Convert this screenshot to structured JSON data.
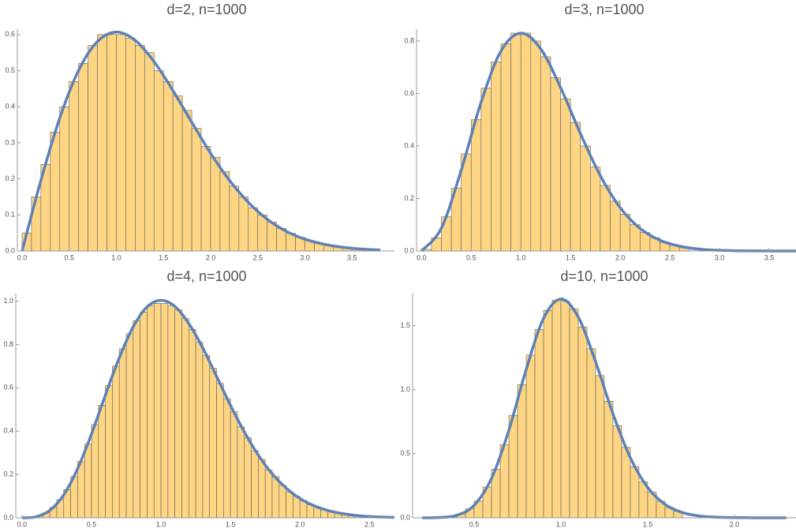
{
  "chart_data": [
    {
      "type": "histogram",
      "title": "d=2, n=1000",
      "color": "#fdd583",
      "edge_color": "#5f5f5f",
      "bins": [
        0,
        0.1,
        0.2,
        0.3,
        0.4,
        0.5,
        0.6,
        0.7,
        0.8,
        0.9,
        1.0,
        1.1,
        1.2,
        1.3,
        1.4,
        1.5,
        1.6,
        1.7,
        1.8,
        1.9,
        2.0,
        2.1,
        2.2,
        2.3,
        2.4,
        2.5,
        2.6,
        2.7,
        2.8,
        2.9,
        3.0,
        3.1,
        3.2,
        3.3,
        3.4,
        3.5,
        3.6
      ],
      "values": [
        0.05,
        0.15,
        0.24,
        0.33,
        0.4,
        0.47,
        0.52,
        0.57,
        0.6,
        0.6,
        0.6,
        0.59,
        0.57,
        0.55,
        0.5,
        0.47,
        0.43,
        0.39,
        0.34,
        0.29,
        0.26,
        0.22,
        0.18,
        0.15,
        0.12,
        0.1,
        0.08,
        0.063,
        0.049,
        0.038,
        0.029,
        0.022,
        0.017,
        0.012,
        0.009,
        0.006
      ],
      "curve": {
        "color": "#5e81b5",
        "x": [
          0,
          0.2,
          0.4,
          0.6,
          0.8,
          1.0,
          1.2,
          1.4,
          1.6,
          1.8,
          2.0,
          2.2,
          2.4,
          2.6,
          2.8,
          3.0,
          3.2,
          3.4,
          3.6,
          3.8
        ],
        "values": [
          0,
          0.196,
          0.369,
          0.501,
          0.581,
          0.607,
          0.584,
          0.525,
          0.445,
          0.357,
          0.271,
          0.196,
          0.135,
          0.088,
          0.055,
          0.033,
          0.019,
          0.0105,
          0.0055,
          0.0028
        ]
      },
      "xlim": [
        -0.05,
        3.95
      ],
      "ylim": [
        0,
        0.615
      ],
      "xticks": [
        {
          "value": 0,
          "label": "0.0"
        },
        0.5,
        {
          "value": 1,
          "label": "1.0"
        },
        1.5,
        {
          "value": 2,
          "label": "2.0"
        },
        2.5,
        {
          "value": 3,
          "label": "3.0"
        },
        3.5
      ],
      "yticks": [
        {
          "value": 0,
          "label": "0.0"
        },
        0.1,
        0.2,
        0.3,
        0.4,
        0.5,
        0.6
      ]
    },
    {
      "type": "histogram",
      "title": "d=3, n=1000",
      "color": "#fdd583",
      "edge_color": "#5f5f5f",
      "bins": [
        0,
        0.1,
        0.2,
        0.3,
        0.4,
        0.5,
        0.6,
        0.7,
        0.8,
        0.9,
        1.0,
        1.1,
        1.2,
        1.3,
        1.4,
        1.5,
        1.6,
        1.7,
        1.8,
        1.9,
        2.0,
        2.1,
        2.2,
        2.3,
        2.4,
        2.5,
        2.6,
        2.7
      ],
      "values": [
        0.006,
        0.05,
        0.13,
        0.24,
        0.37,
        0.5,
        0.62,
        0.72,
        0.79,
        0.83,
        0.83,
        0.8,
        0.74,
        0.66,
        0.58,
        0.49,
        0.4,
        0.32,
        0.25,
        0.19,
        0.14,
        0.1,
        0.07,
        0.05,
        0.033,
        0.022,
        0.014
      ],
      "curve": {
        "color": "#5e81b5",
        "x": [
          0,
          0.2,
          0.4,
          0.6,
          0.8,
          1.0,
          1.2,
          1.4,
          1.6,
          1.8,
          2.0,
          2.2,
          2.4,
          2.6,
          2.8,
          3.0,
          3.2,
          3.4,
          3.6,
          3.8
        ],
        "values": [
          0,
          0.087,
          0.308,
          0.567,
          0.762,
          0.83,
          0.77,
          0.623,
          0.447,
          0.287,
          0.165,
          0.086,
          0.041,
          0.018,
          0.007,
          0.0025,
          0.0008,
          0.0002,
          0.0001,
          0
        ]
      },
      "xlim": [
        -0.05,
        3.77
      ],
      "ylim": [
        0,
        0.845
      ],
      "xticks": [
        {
          "value": 0,
          "label": "0.0"
        },
        0.5,
        {
          "value": 1,
          "label": "1.0"
        },
        1.5,
        {
          "value": 2,
          "label": "2.0"
        },
        2.5,
        {
          "value": 3,
          "label": "3.0"
        },
        3.5
      ],
      "yticks": [
        {
          "value": 0,
          "label": "0.0"
        },
        0.2,
        0.4,
        0.6,
        0.8
      ]
    },
    {
      "type": "histogram",
      "title": "d=4, n=1000",
      "color": "#fdd583",
      "edge_color": "#5f5f5f",
      "bins": [
        0,
        0.05,
        0.1,
        0.15,
        0.2,
        0.25,
        0.3,
        0.35,
        0.4,
        0.45,
        0.5,
        0.55,
        0.6,
        0.65,
        0.7,
        0.75,
        0.8,
        0.85,
        0.9,
        0.95,
        1.0,
        1.05,
        1.1,
        1.15,
        1.2,
        1.25,
        1.3,
        1.35,
        1.4,
        1.45,
        1.5,
        1.55,
        1.6,
        1.65,
        1.7,
        1.75,
        1.8,
        1.85,
        1.9,
        1.95,
        2.0,
        2.05,
        2.1,
        2.15,
        2.2,
        2.25,
        2.3,
        2.35,
        2.4
      ],
      "values": [
        0,
        0.002,
        0.009,
        0.023,
        0.048,
        0.084,
        0.13,
        0.19,
        0.26,
        0.34,
        0.43,
        0.52,
        0.61,
        0.7,
        0.78,
        0.85,
        0.91,
        0.95,
        0.98,
        0.99,
        0.99,
        0.98,
        0.96,
        0.92,
        0.87,
        0.81,
        0.75,
        0.69,
        0.62,
        0.55,
        0.49,
        0.42,
        0.37,
        0.31,
        0.27,
        0.22,
        0.19,
        0.15,
        0.12,
        0.1,
        0.08,
        0.06,
        0.05,
        0.037,
        0.029,
        0.022,
        0.016,
        0.012
      ],
      "curve": {
        "color": "#5e81b5",
        "x": [
          0,
          0.1,
          0.2,
          0.3,
          0.4,
          0.5,
          0.6,
          0.7,
          0.8,
          0.9,
          1.0,
          1.1,
          1.2,
          1.3,
          1.4,
          1.5,
          1.6,
          1.7,
          1.8,
          1.9,
          2.0,
          2.1,
          2.2,
          2.3,
          2.4,
          2.5,
          2.6,
          2.7
        ],
        "values": [
          0,
          0.0044,
          0.034,
          0.106,
          0.227,
          0.387,
          0.567,
          0.739,
          0.882,
          0.974,
          1.004,
          0.976,
          0.897,
          0.785,
          0.653,
          0.519,
          0.396,
          0.29,
          0.203,
          0.138,
          0.089,
          0.056,
          0.034,
          0.02,
          0.011,
          0.006,
          0.003,
          0.0015
        ]
      },
      "xlim": [
        -0.045,
        2.68
      ],
      "ylim": [
        0,
        1.035
      ],
      "xticks": [
        {
          "value": 0,
          "label": "0.0"
        },
        0.5,
        {
          "value": 1,
          "label": "1.0"
        },
        1.5,
        {
          "value": 2,
          "label": "2.0"
        },
        2.5
      ],
      "yticks": [
        {
          "value": 0,
          "label": "0.0"
        },
        0.2,
        0.4,
        0.6,
        0.8,
        {
          "value": 1,
          "label": "1.0"
        }
      ]
    },
    {
      "type": "histogram",
      "title": "d=10, n=1000",
      "color": "#fdd583",
      "edge_color": "#5f5f5f",
      "bins": [
        0.3,
        0.35,
        0.4,
        0.45,
        0.5,
        0.55,
        0.6,
        0.65,
        0.7,
        0.75,
        0.8,
        0.85,
        0.9,
        0.95,
        1.0,
        1.05,
        1.1,
        1.15,
        1.2,
        1.25,
        1.3,
        1.35,
        1.4,
        1.45,
        1.5,
        1.55,
        1.6,
        1.65,
        1.7
      ],
      "values": [
        0.004,
        0.012,
        0.03,
        0.07,
        0.13,
        0.24,
        0.38,
        0.57,
        0.8,
        1.04,
        1.27,
        1.47,
        1.62,
        1.7,
        1.69,
        1.63,
        1.49,
        1.32,
        1.11,
        0.91,
        0.72,
        0.55,
        0.4,
        0.28,
        0.2,
        0.13,
        0.08,
        0.05
      ],
      "curve": {
        "color": "#5e81b5",
        "x": [
          0.2,
          0.3,
          0.4,
          0.5,
          0.6,
          0.7,
          0.8,
          0.9,
          1.0,
          1.1,
          1.2,
          1.3,
          1.4,
          1.5,
          1.6,
          1.7,
          1.8,
          1.9,
          2.0,
          2.1,
          2.2,
          2.3
        ],
        "values": [
          7e-05,
          0.002,
          0.0196,
          0.098,
          0.307,
          0.684,
          1.159,
          1.557,
          1.708,
          1.567,
          1.217,
          0.812,
          0.469,
          0.237,
          0.105,
          0.041,
          0.014,
          0.0044,
          0.0012,
          0.0003,
          0.0001,
          0
        ]
      },
      "xlim": [
        0.145,
        2.355
      ],
      "ylim": [
        0,
        1.75
      ],
      "xticks": [
        0.5,
        {
          "value": 1,
          "label": "1.0"
        },
        1.5,
        {
          "value": 2,
          "label": "2.0"
        }
      ],
      "yticks": [
        {
          "value": 0,
          "label": "0.0"
        },
        0.5,
        {
          "value": 1,
          "label": "1.0"
        },
        1.5
      ]
    }
  ]
}
